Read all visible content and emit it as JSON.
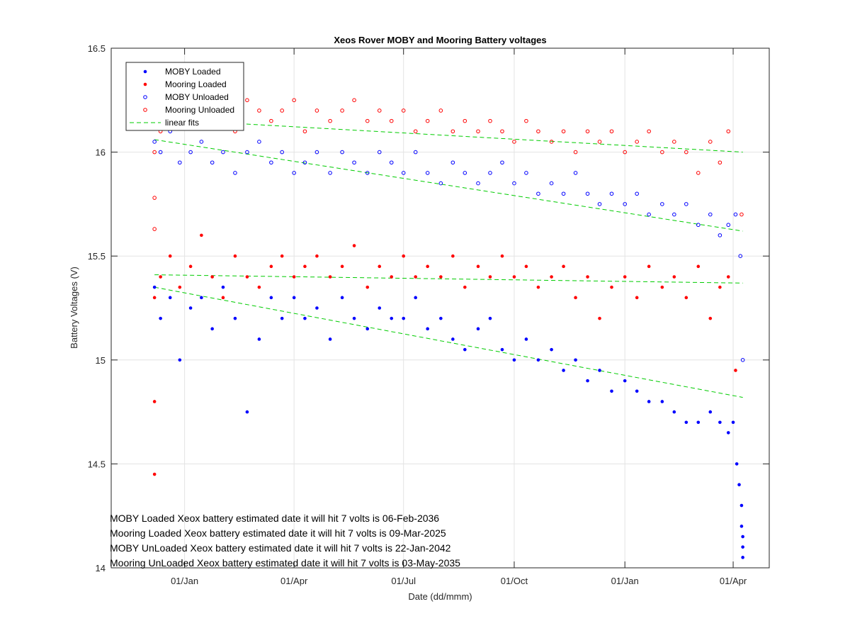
{
  "colors": {
    "moby": "#0000ff",
    "mooring": "#ff0000",
    "fit": "#00cc00",
    "grid": "#e3e3e3",
    "axis": "#262626"
  },
  "chart_data": {
    "type": "scatter",
    "title": "Xeos Rover MOBY and Mooring Battery voltages",
    "xlabel": "Date (dd/mmm)",
    "ylabel": "Battery Voltages (V)",
    "xlim": [
      "2023-11-01",
      "2025-05-01"
    ],
    "ylim": [
      14,
      16.5
    ],
    "grid": true,
    "legend_location": "top-left",
    "x_ticks": [
      {
        "date": "2024-01-01",
        "label": "01/Jan"
      },
      {
        "date": "2024-04-01",
        "label": "01/Apr"
      },
      {
        "date": "2024-07-01",
        "label": "01/Jul"
      },
      {
        "date": "2024-10-01",
        "label": "01/Oct"
      },
      {
        "date": "2025-01-01",
        "label": "01/Jan"
      },
      {
        "date": "2025-04-01",
        "label": "01/Apr"
      }
    ],
    "y_ticks": [
      {
        "value": 14,
        "label": "14"
      },
      {
        "value": 14.5,
        "label": "14.5"
      },
      {
        "value": 15,
        "label": "15"
      },
      {
        "value": 15.5,
        "label": "15.5"
      },
      {
        "value": 16,
        "label": "16"
      },
      {
        "value": 16.5,
        "label": "16.5"
      }
    ],
    "legend": [
      {
        "label": "MOBY Loaded",
        "marker": "filled",
        "color": "#0000ff"
      },
      {
        "label": "Mooring Loaded",
        "marker": "filled",
        "color": "#ff0000"
      },
      {
        "label": "MOBY Unloaded",
        "marker": "open",
        "color": "#0000ff"
      },
      {
        "label": "Mooring Unloaded",
        "marker": "open",
        "color": "#ff0000"
      },
      {
        "label": "linear fits",
        "marker": "dashed-line",
        "color": "#00cc00"
      }
    ],
    "series": [
      {
        "name": "MOBY Loaded",
        "marker": "filled",
        "color": "#0000ff",
        "x": [
          "2023-12-07",
          "2023-12-12",
          "2023-12-20",
          "2023-12-28",
          "2024-01-06",
          "2024-01-15",
          "2024-01-24",
          "2024-02-02",
          "2024-02-12",
          "2024-02-22",
          "2024-03-03",
          "2024-03-13",
          "2024-03-22",
          "2024-04-01",
          "2024-04-10",
          "2024-04-20",
          "2024-05-01",
          "2024-05-11",
          "2024-05-21",
          "2024-06-01",
          "2024-06-11",
          "2024-06-21",
          "2024-07-01",
          "2024-07-11",
          "2024-07-21",
          "2024-08-01",
          "2024-08-11",
          "2024-08-21",
          "2024-09-01",
          "2024-09-11",
          "2024-09-21",
          "2024-10-01",
          "2024-10-11",
          "2024-10-21",
          "2024-11-01",
          "2024-11-11",
          "2024-11-21",
          "2024-12-01",
          "2024-12-11",
          "2024-12-21",
          "2025-01-01",
          "2025-01-11",
          "2025-01-21",
          "2025-02-01",
          "2025-02-11",
          "2025-02-21",
          "2025-03-03",
          "2025-03-13",
          "2025-03-21",
          "2025-03-28",
          "2025-04-01",
          "2025-04-04",
          "2025-04-06",
          "2025-04-08",
          "2025-04-08",
          "2025-04-09",
          "2025-04-09",
          "2025-04-09"
        ],
        "y": [
          15.35,
          15.2,
          15.3,
          15.0,
          15.25,
          15.3,
          15.15,
          15.35,
          15.2,
          14.75,
          15.1,
          15.3,
          15.2,
          15.3,
          15.2,
          15.25,
          15.1,
          15.3,
          15.2,
          15.15,
          15.25,
          15.2,
          15.2,
          15.3,
          15.15,
          15.2,
          15.1,
          15.05,
          15.15,
          15.2,
          15.05,
          15.0,
          15.1,
          15.0,
          15.05,
          14.95,
          15.0,
          14.9,
          14.95,
          14.85,
          14.9,
          14.85,
          14.8,
          14.8,
          14.75,
          14.7,
          14.7,
          14.75,
          14.7,
          14.65,
          14.7,
          14.5,
          14.4,
          14.3,
          14.2,
          14.15,
          14.1,
          14.05
        ]
      },
      {
        "name": "Mooring Loaded",
        "marker": "filled",
        "color": "#ff0000",
        "x": [
          "2023-12-07",
          "2023-12-07",
          "2023-12-07",
          "2023-12-12",
          "2023-12-20",
          "2023-12-28",
          "2024-01-06",
          "2024-01-15",
          "2024-01-24",
          "2024-02-02",
          "2024-02-12",
          "2024-02-22",
          "2024-03-03",
          "2024-03-13",
          "2024-03-22",
          "2024-04-01",
          "2024-04-10",
          "2024-04-20",
          "2024-05-01",
          "2024-05-11",
          "2024-05-21",
          "2024-06-01",
          "2024-06-11",
          "2024-06-21",
          "2024-07-01",
          "2024-07-11",
          "2024-07-21",
          "2024-08-01",
          "2024-08-11",
          "2024-08-21",
          "2024-09-01",
          "2024-09-11",
          "2024-09-21",
          "2024-10-01",
          "2024-10-11",
          "2024-10-21",
          "2024-11-01",
          "2024-11-11",
          "2024-11-21",
          "2024-12-01",
          "2024-12-11",
          "2024-12-21",
          "2025-01-01",
          "2025-01-11",
          "2025-01-21",
          "2025-02-01",
          "2025-02-11",
          "2025-02-21",
          "2025-03-03",
          "2025-03-13",
          "2025-03-21",
          "2025-03-28",
          "2025-04-03"
        ],
        "y": [
          14.45,
          14.8,
          15.3,
          15.4,
          15.5,
          15.35,
          15.45,
          15.6,
          15.4,
          15.3,
          15.5,
          15.4,
          15.35,
          15.45,
          15.5,
          15.4,
          15.45,
          15.5,
          15.4,
          15.45,
          15.55,
          15.35,
          15.45,
          15.4,
          15.5,
          15.4,
          15.45,
          15.4,
          15.5,
          15.35,
          15.45,
          15.4,
          15.5,
          15.4,
          15.45,
          15.35,
          15.4,
          15.45,
          15.3,
          15.4,
          15.2,
          15.35,
          15.4,
          15.3,
          15.45,
          15.35,
          15.4,
          15.3,
          15.45,
          15.2,
          15.35,
          15.4,
          14.95
        ]
      },
      {
        "name": "MOBY Unloaded",
        "marker": "open",
        "color": "#0000ff",
        "x": [
          "2023-12-07",
          "2023-12-12",
          "2023-12-20",
          "2023-12-28",
          "2024-01-06",
          "2024-01-15",
          "2024-01-24",
          "2024-02-02",
          "2024-02-12",
          "2024-02-22",
          "2024-03-03",
          "2024-03-13",
          "2024-03-22",
          "2024-04-01",
          "2024-04-10",
          "2024-04-20",
          "2024-05-01",
          "2024-05-11",
          "2024-05-21",
          "2024-06-01",
          "2024-06-11",
          "2024-06-21",
          "2024-07-01",
          "2024-07-11",
          "2024-07-21",
          "2024-08-01",
          "2024-08-11",
          "2024-08-21",
          "2024-09-01",
          "2024-09-11",
          "2024-09-21",
          "2024-10-01",
          "2024-10-11",
          "2024-10-21",
          "2024-11-01",
          "2024-11-11",
          "2024-11-21",
          "2024-12-01",
          "2024-12-11",
          "2024-12-21",
          "2025-01-01",
          "2025-01-11",
          "2025-01-21",
          "2025-02-01",
          "2025-02-11",
          "2025-02-21",
          "2025-03-03",
          "2025-03-13",
          "2025-03-21",
          "2025-03-28",
          "2025-04-03",
          "2025-04-07",
          "2025-04-09"
        ],
        "y": [
          16.05,
          16.0,
          16.1,
          15.95,
          16.0,
          16.05,
          15.95,
          16.0,
          15.9,
          16.0,
          16.05,
          15.95,
          16.0,
          15.9,
          15.95,
          16.0,
          15.9,
          16.0,
          15.95,
          15.9,
          16.0,
          15.95,
          15.9,
          16.0,
          15.9,
          15.85,
          15.95,
          15.9,
          15.85,
          15.9,
          15.95,
          15.85,
          15.9,
          15.8,
          15.85,
          15.8,
          15.9,
          15.8,
          15.75,
          15.8,
          15.75,
          15.8,
          15.7,
          15.75,
          15.7,
          15.75,
          15.65,
          15.7,
          15.6,
          15.65,
          15.7,
          15.5,
          15.0
        ]
      },
      {
        "name": "Mooring Unloaded",
        "marker": "open",
        "color": "#ff0000",
        "x": [
          "2023-12-07",
          "2023-12-07",
          "2023-12-07",
          "2023-12-12",
          "2023-12-20",
          "2023-12-28",
          "2024-01-06",
          "2024-01-15",
          "2024-01-24",
          "2024-02-02",
          "2024-02-12",
          "2024-02-22",
          "2024-03-03",
          "2024-03-13",
          "2024-03-22",
          "2024-04-01",
          "2024-04-10",
          "2024-04-20",
          "2024-05-01",
          "2024-05-11",
          "2024-05-21",
          "2024-06-01",
          "2024-06-11",
          "2024-06-21",
          "2024-07-01",
          "2024-07-11",
          "2024-07-21",
          "2024-08-01",
          "2024-08-11",
          "2024-08-21",
          "2024-09-01",
          "2024-09-11",
          "2024-09-21",
          "2024-10-01",
          "2024-10-11",
          "2024-10-21",
          "2024-11-01",
          "2024-11-11",
          "2024-11-21",
          "2024-12-01",
          "2024-12-11",
          "2024-12-21",
          "2025-01-01",
          "2025-01-11",
          "2025-01-21",
          "2025-02-01",
          "2025-02-11",
          "2025-02-21",
          "2025-03-03",
          "2025-03-13",
          "2025-03-21",
          "2025-03-28",
          "2025-04-08"
        ],
        "y": [
          15.63,
          15.78,
          16.0,
          16.1,
          16.2,
          16.15,
          16.25,
          16.2,
          16.15,
          16.2,
          16.1,
          16.25,
          16.2,
          16.15,
          16.2,
          16.25,
          16.1,
          16.2,
          16.15,
          16.2,
          16.25,
          16.15,
          16.2,
          16.15,
          16.2,
          16.1,
          16.15,
          16.2,
          16.1,
          16.15,
          16.1,
          16.15,
          16.1,
          16.05,
          16.15,
          16.1,
          16.05,
          16.1,
          16.0,
          16.1,
          16.05,
          16.1,
          16.0,
          16.05,
          16.1,
          16.0,
          16.05,
          16.0,
          15.9,
          16.05,
          15.95,
          16.1,
          15.7
        ]
      }
    ],
    "linear_fits": [
      {
        "for": "MOBY Loaded",
        "x": [
          "2023-12-07",
          "2025-04-09"
        ],
        "y": [
          15.35,
          14.82
        ]
      },
      {
        "for": "Mooring Loaded",
        "x": [
          "2023-12-07",
          "2025-04-09"
        ],
        "y": [
          15.41,
          15.37
        ]
      },
      {
        "for": "MOBY Unloaded",
        "x": [
          "2023-12-07",
          "2025-04-09"
        ],
        "y": [
          16.06,
          15.62
        ]
      },
      {
        "for": "Mooring Unloaded",
        "x": [
          "2023-12-07",
          "2025-04-09"
        ],
        "y": [
          16.16,
          16.0
        ]
      }
    ],
    "annotations": [
      "MOBY Loaded Xeox battery estimated date it will hit 7 volts is 06-Feb-2036",
      "Mooring Loaded Xeox battery estimated date it will hit 7 volts is 09-Mar-2025",
      "MOBY UnLoaded Xeox battery estimated date it will hit 7 volts is 22-Jan-2042",
      "Mooring UnLoaded Xeox battery estimated date it will hit 7 volts is 03-May-2035"
    ]
  }
}
